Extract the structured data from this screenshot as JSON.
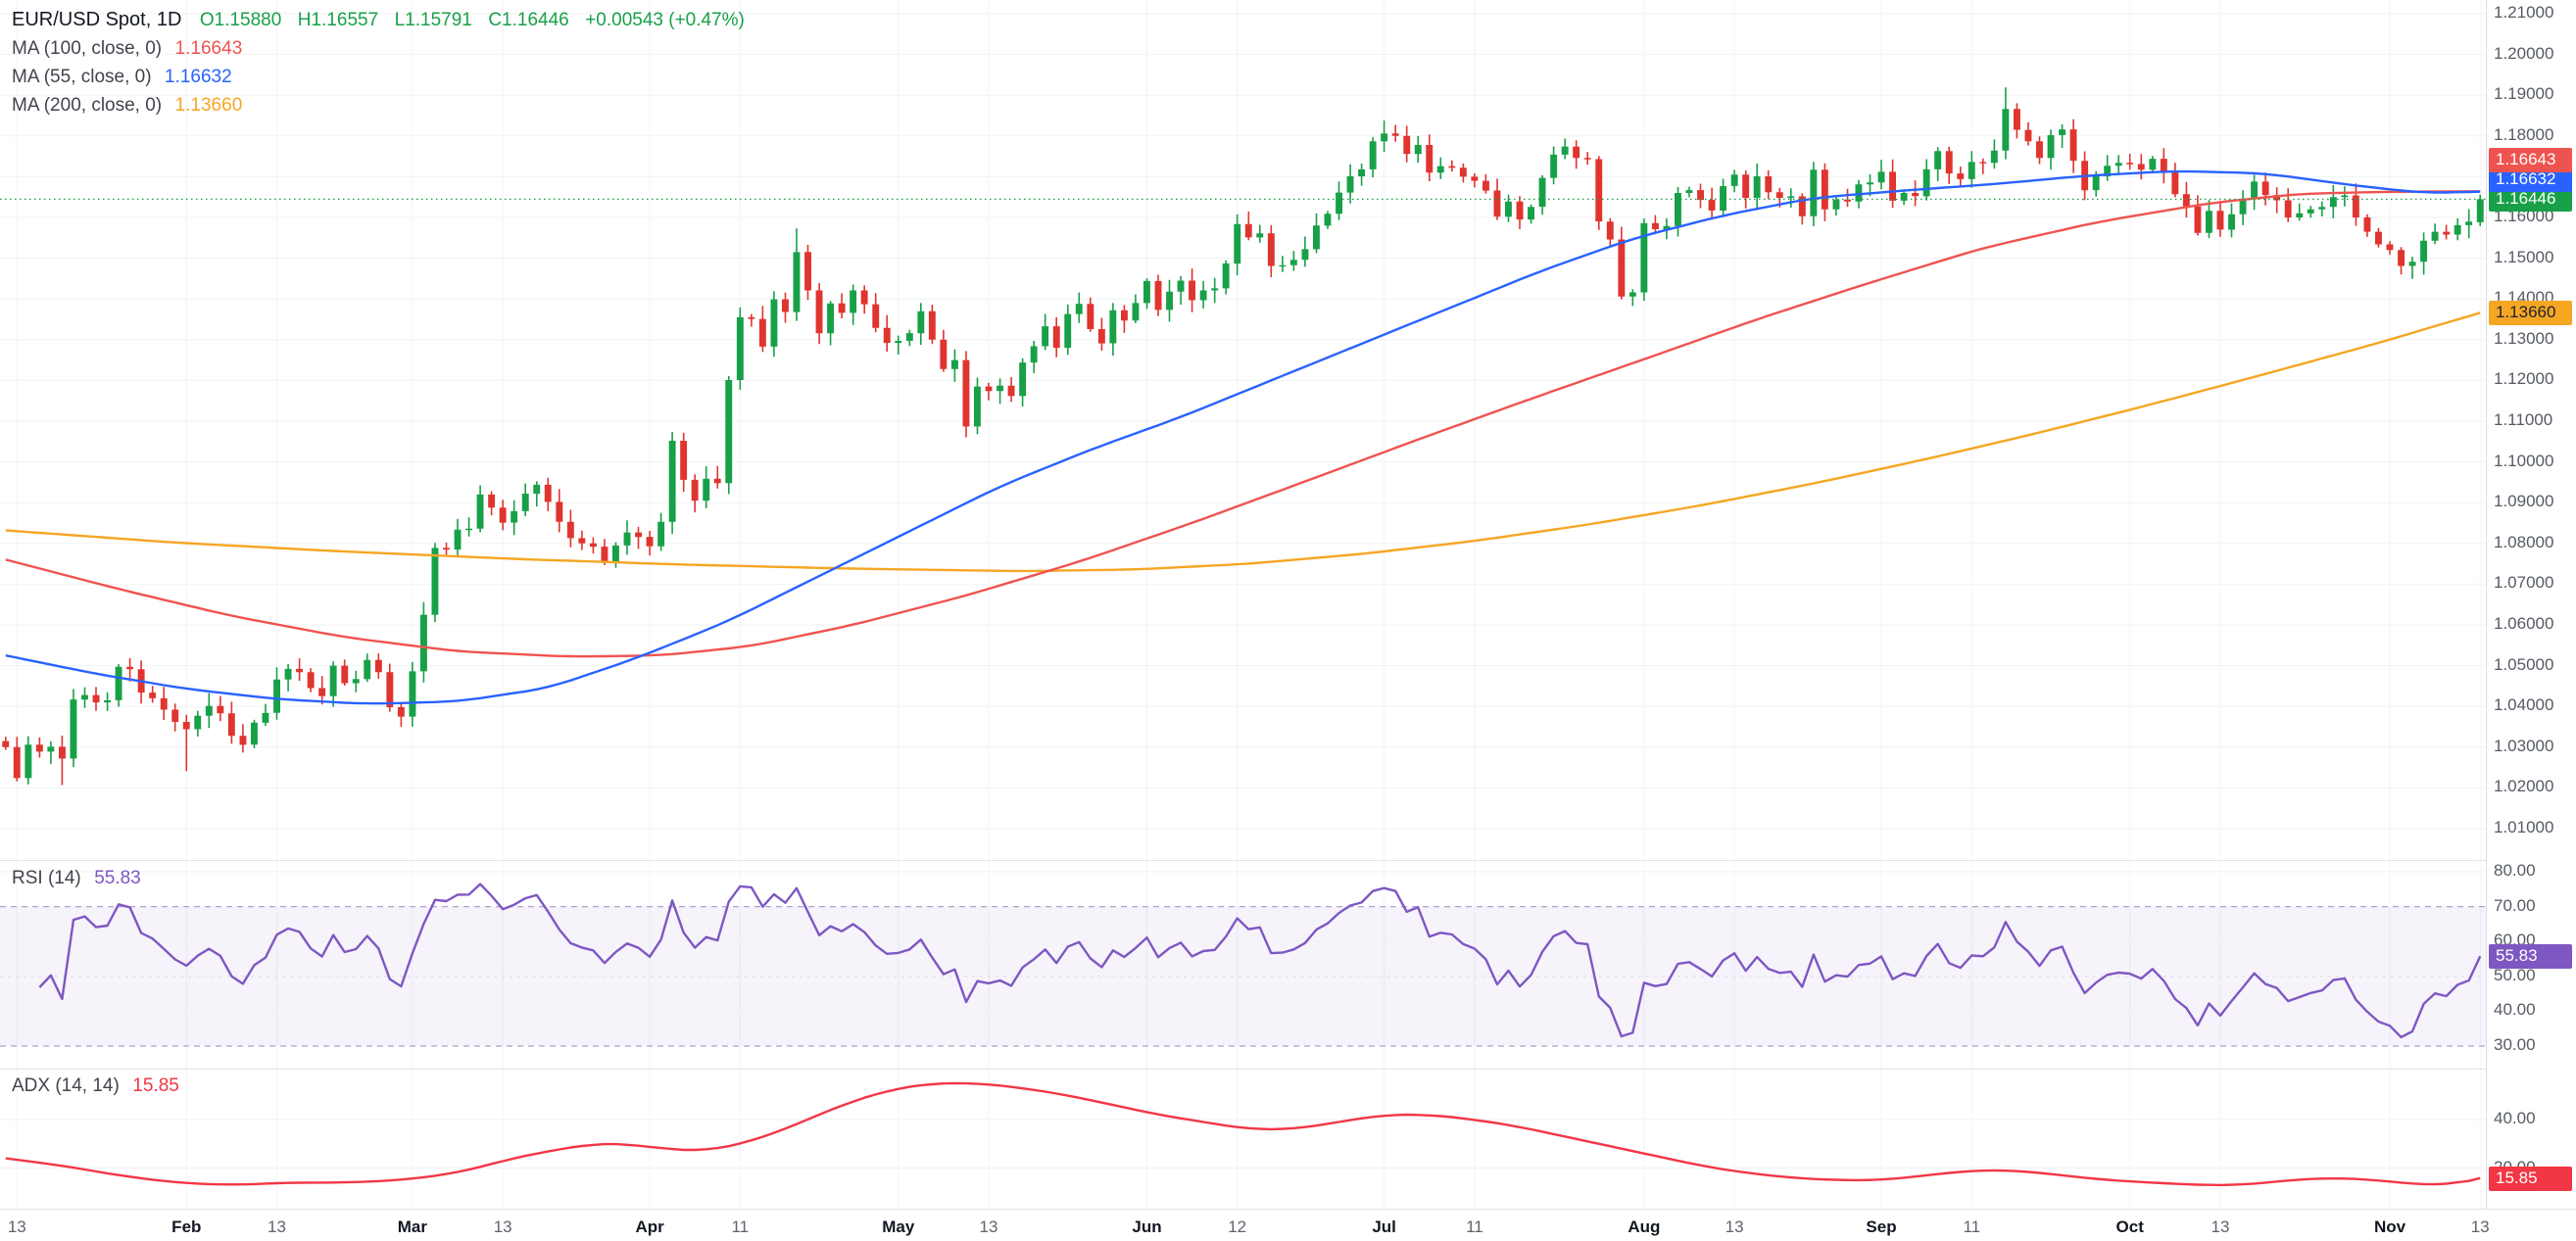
{
  "app": {
    "type": "candlestick-trading-chart",
    "background": "#ffffff"
  },
  "legend": {
    "title": "EUR/USD Spot, 1D",
    "ohlc": {
      "o": "O1.15880",
      "h": "H1.16557",
      "l": "L1.15791",
      "c": "C1.16446",
      "chg": "+0.00543 (+0.47%)",
      "color": "#18a048"
    },
    "ma": [
      {
        "label": "MA (100, close, 0)",
        "value": "1.16643",
        "color": "#ef5350"
      },
      {
        "label": "MA (55, close, 0)",
        "value": "1.16632",
        "color": "#2962ff"
      },
      {
        "label": "MA (200, close, 0)",
        "value": "1.13660",
        "color": "#f5a623"
      }
    ],
    "rsi": {
      "label": "RSI (14)",
      "value": "55.83",
      "color": "#7e57c2"
    },
    "adx": {
      "label": "ADX (14, 14)",
      "value": "15.85",
      "color": "#f23645"
    }
  },
  "badges": [
    {
      "name": "ma100-price-badge",
      "panel": "price",
      "text": "1.16643",
      "value": 1.16643,
      "bg": "#ef5350",
      "fg": "#ffffff"
    },
    {
      "name": "ma55-price-badge",
      "panel": "price",
      "text": "1.16632",
      "value": 1.16632,
      "bg": "#2962ff",
      "fg": "#ffffff"
    },
    {
      "name": "last-price-badge",
      "panel": "price",
      "text": "1.16446",
      "value": 1.16446,
      "bg": "#18a048",
      "fg": "#ffffff"
    },
    {
      "name": "ma200-price-badge",
      "panel": "price",
      "text": "1.13660",
      "value": 1.1366,
      "bg": "#f5a623",
      "fg": "#20242e"
    },
    {
      "name": "rsi-value-badge",
      "panel": "rsi",
      "text": "55.83",
      "value": 55.83,
      "bg": "#7e57c2",
      "fg": "#ffffff"
    },
    {
      "name": "adx-value-badge",
      "panel": "adx",
      "text": "15.85",
      "value": 15.85,
      "bg": "#f23645",
      "fg": "#ffffff"
    }
  ],
  "chart_data": [
    {
      "type": "candlestick",
      "title": "EUR/USD Spot",
      "timeframe": "1D",
      "last_candle": {
        "open": 1.1588,
        "high": 1.16557,
        "low": 1.15791,
        "close": 1.16446,
        "change": 0.00543,
        "change_pct": 0.47
      },
      "y_axis": {
        "min": 1.01,
        "max": 1.21,
        "step": 0.01
      },
      "colors": {
        "up": "#18a048",
        "down": "#e0342f",
        "last_price_line": "#18a048"
      },
      "x_ticks": [
        {
          "label": "13",
          "i": 1,
          "strong": false
        },
        {
          "label": "Feb",
          "i": 16,
          "strong": true
        },
        {
          "label": "13",
          "i": 24,
          "strong": false
        },
        {
          "label": "Mar",
          "i": 36,
          "strong": true
        },
        {
          "label": "13",
          "i": 44,
          "strong": false
        },
        {
          "label": "Apr",
          "i": 57,
          "strong": true
        },
        {
          "label": "11",
          "i": 65,
          "strong": false
        },
        {
          "label": "May",
          "i": 79,
          "strong": true
        },
        {
          "label": "13",
          "i": 87,
          "strong": false
        },
        {
          "label": "Jun",
          "i": 101,
          "strong": true
        },
        {
          "label": "12",
          "i": 109,
          "strong": false
        },
        {
          "label": "Jul",
          "i": 122,
          "strong": true
        },
        {
          "label": "11",
          "i": 130,
          "strong": false
        },
        {
          "label": "Aug",
          "i": 145,
          "strong": true
        },
        {
          "label": "13",
          "i": 153,
          "strong": false
        },
        {
          "label": "Sep",
          "i": 166,
          "strong": true
        },
        {
          "label": "11",
          "i": 174,
          "strong": false
        },
        {
          "label": "Oct",
          "i": 188,
          "strong": true
        },
        {
          "label": "13",
          "i": 196,
          "strong": false
        },
        {
          "label": "Nov",
          "i": 211,
          "strong": true
        },
        {
          "label": "13",
          "i": 219,
          "strong": false
        }
      ],
      "first_open": 1.0315,
      "closes": [
        1.03,
        1.0224,
        1.0306,
        1.0289,
        1.0301,
        1.0272,
        1.0417,
        1.0428,
        1.041,
        1.0415,
        1.0497,
        1.0491,
        1.0434,
        1.042,
        1.0392,
        1.0362,
        1.0344,
        1.0377,
        1.0401,
        1.0383,
        1.0328,
        1.0306,
        1.036,
        1.0384,
        1.0466,
        1.0492,
        1.0484,
        1.0445,
        1.0425,
        1.05,
        1.0457,
        1.0467,
        1.0514,
        1.0484,
        1.0398,
        1.0375,
        1.0486,
        1.0625,
        1.0789,
        1.0785,
        1.0834,
        1.0836,
        1.092,
        1.0888,
        1.0851,
        1.0879,
        1.0922,
        1.0944,
        1.0902,
        1.0853,
        1.0813,
        1.08,
        1.0792,
        1.0756,
        1.0795,
        1.0827,
        1.0816,
        1.0793,
        1.0853,
        1.1052,
        1.0956,
        1.0905,
        1.0959,
        1.0948,
        1.1201,
        1.1355,
        1.1351,
        1.1283,
        1.1399,
        1.1368,
        1.1515,
        1.1421,
        1.1316,
        1.1389,
        1.1366,
        1.1421,
        1.1387,
        1.1329,
        1.1292,
        1.1297,
        1.1316,
        1.137,
        1.13,
        1.1228,
        1.125,
        1.1087,
        1.1185,
        1.1174,
        1.1187,
        1.1162,
        1.1244,
        1.1284,
        1.1333,
        1.128,
        1.1363,
        1.1388,
        1.1326,
        1.1291,
        1.1372,
        1.1347,
        1.139,
        1.1444,
        1.1373,
        1.1418,
        1.1445,
        1.1397,
        1.1421,
        1.1426,
        1.1487,
        1.1584,
        1.1551,
        1.1561,
        1.1481,
        1.1483,
        1.1496,
        1.1522,
        1.158,
        1.1609,
        1.1661,
        1.1701,
        1.1718,
        1.1787,
        1.1806,
        1.18,
        1.1756,
        1.1778,
        1.171,
        1.1726,
        1.1722,
        1.17,
        1.169,
        1.1666,
        1.1602,
        1.1639,
        1.1595,
        1.1626,
        1.1697,
        1.1754,
        1.1774,
        1.1746,
        1.1743,
        1.159,
        1.1546,
        1.1406,
        1.1416,
        1.1586,
        1.1571,
        1.1579,
        1.166,
        1.1667,
        1.1643,
        1.1617,
        1.1677,
        1.1705,
        1.1648,
        1.1701,
        1.1662,
        1.1648,
        1.1652,
        1.1603,
        1.1717,
        1.162,
        1.1644,
        1.1639,
        1.1681,
        1.1686,
        1.1712,
        1.1641,
        1.166,
        1.1652,
        1.1718,
        1.1763,
        1.1708,
        1.1694,
        1.1736,
        1.1734,
        1.1764,
        1.1866,
        1.1815,
        1.1787,
        1.1746,
        1.1802,
        1.1816,
        1.1739,
        1.1667,
        1.1701,
        1.1727,
        1.1734,
        1.1731,
        1.1717,
        1.1744,
        1.1712,
        1.1657,
        1.1627,
        1.1562,
        1.1616,
        1.157,
        1.1608,
        1.1646,
        1.1688,
        1.1655,
        1.1642,
        1.16,
        1.161,
        1.162,
        1.1626,
        1.165,
        1.1654,
        1.16,
        1.1565,
        1.1534,
        1.152,
        1.1481,
        1.1491,
        1.1543,
        1.1565,
        1.1558,
        1.1581,
        1.159,
        1.16446
      ],
      "wick_overrides": {
        "5": {
          "l": 1.0207
        },
        "16": {
          "l": 1.0241
        },
        "70": {
          "h": 1.1573
        },
        "177": {
          "h": 1.1919
        },
        "219": {
          "o": 1.1588,
          "h": 1.16557,
          "l": 1.15791,
          "c": 1.16446
        }
      },
      "moving_averages": [
        {
          "name": "MA 200",
          "color": "#f5a623",
          "last": 1.1366,
          "anchors": [
            [
              0,
              1.0832
            ],
            [
              15,
              1.0802
            ],
            [
              30,
              1.078
            ],
            [
              45,
              1.0762
            ],
            [
              60,
              1.0748
            ],
            [
              75,
              1.0738
            ],
            [
              90,
              1.0732
            ],
            [
              100,
              1.0736
            ],
            [
              110,
              1.075
            ],
            [
              120,
              1.0774
            ],
            [
              130,
              1.0806
            ],
            [
              140,
              1.0846
            ],
            [
              150,
              1.0893
            ],
            [
              160,
              1.0947
            ],
            [
              170,
              1.1007
            ],
            [
              180,
              1.1072
            ],
            [
              190,
              1.1142
            ],
            [
              200,
              1.1216
            ],
            [
              210,
              1.1292
            ],
            [
              219,
              1.1366
            ]
          ]
        },
        {
          "name": "MA 100",
          "color": "#ef5350",
          "last": 1.16643,
          "anchors": [
            [
              0,
              1.076
            ],
            [
              10,
              1.0688
            ],
            [
              20,
              1.0622
            ],
            [
              30,
              1.057
            ],
            [
              40,
              1.0535
            ],
            [
              50,
              1.0522
            ],
            [
              58,
              1.0525
            ],
            [
              66,
              1.0548
            ],
            [
              75,
              1.06
            ],
            [
              85,
              1.0672
            ],
            [
              95,
              1.0755
            ],
            [
              105,
              1.085
            ],
            [
              115,
              1.0952
            ],
            [
              125,
              1.1055
            ],
            [
              135,
              1.1155
            ],
            [
              145,
              1.1252
            ],
            [
              155,
              1.135
            ],
            [
              165,
              1.144
            ],
            [
              175,
              1.1525
            ],
            [
              185,
              1.1588
            ],
            [
              195,
              1.1635
            ],
            [
              203,
              1.1658
            ],
            [
              211,
              1.1663
            ],
            [
              219,
              1.16643
            ]
          ]
        },
        {
          "name": "MA 55",
          "color": "#2962ff",
          "last": 1.16632,
          "anchors": [
            [
              0,
              1.0525
            ],
            [
              8,
              1.048
            ],
            [
              16,
              1.0443
            ],
            [
              24,
              1.0418
            ],
            [
              32,
              1.0406
            ],
            [
              40,
              1.0412
            ],
            [
              48,
              1.0445
            ],
            [
              56,
              1.052
            ],
            [
              64,
              1.061
            ],
            [
              72,
              1.072
            ],
            [
              80,
              1.083
            ],
            [
              88,
              1.094
            ],
            [
              96,
              1.103
            ],
            [
              104,
              1.111
            ],
            [
              112,
              1.12
            ],
            [
              120,
              1.129
            ],
            [
              128,
              1.138
            ],
            [
              136,
              1.147
            ],
            [
              144,
              1.1548
            ],
            [
              152,
              1.1605
            ],
            [
              160,
              1.1648
            ],
            [
              168,
              1.1666
            ],
            [
              176,
              1.1682
            ],
            [
              184,
              1.1702
            ],
            [
              192,
              1.1714
            ],
            [
              200,
              1.1708
            ],
            [
              208,
              1.1678
            ],
            [
              214,
              1.166
            ],
            [
              219,
              1.16632
            ]
          ]
        }
      ]
    },
    {
      "type": "line",
      "title": "RSI (14)",
      "period": 14,
      "last": 55.83,
      "color": "#7e57c2",
      "band": [
        30,
        70
      ],
      "y_ticks": [
        80,
        70,
        60,
        50,
        40,
        30
      ]
    },
    {
      "type": "line",
      "title": "ADX (14, 14)",
      "last": 15.85,
      "color": "#f23645",
      "y_ticks": [
        40,
        20
      ],
      "values_anchors": [
        [
          0,
          24
        ],
        [
          5,
          21
        ],
        [
          10,
          17
        ],
        [
          15,
          14
        ],
        [
          20,
          13
        ],
        [
          25,
          14
        ],
        [
          30,
          14
        ],
        [
          35,
          15
        ],
        [
          40,
          18
        ],
        [
          44,
          23
        ],
        [
          48,
          27
        ],
        [
          52,
          30
        ],
        [
          55,
          30
        ],
        [
          58,
          28
        ],
        [
          62,
          27
        ],
        [
          66,
          31
        ],
        [
          70,
          38
        ],
        [
          74,
          46
        ],
        [
          78,
          52
        ],
        [
          82,
          55
        ],
        [
          86,
          55
        ],
        [
          90,
          53
        ],
        [
          94,
          50
        ],
        [
          98,
          46
        ],
        [
          102,
          42
        ],
        [
          106,
          39
        ],
        [
          110,
          36
        ],
        [
          114,
          36
        ],
        [
          118,
          39
        ],
        [
          122,
          42
        ],
        [
          126,
          42
        ],
        [
          130,
          40
        ],
        [
          134,
          37
        ],
        [
          138,
          33
        ],
        [
          142,
          29
        ],
        [
          146,
          25
        ],
        [
          150,
          21
        ],
        [
          154,
          18
        ],
        [
          158,
          16
        ],
        [
          162,
          15
        ],
        [
          166,
          15
        ],
        [
          170,
          17
        ],
        [
          174,
          19
        ],
        [
          178,
          19
        ],
        [
          182,
          17
        ],
        [
          186,
          15
        ],
        [
          190,
          14
        ],
        [
          194,
          13
        ],
        [
          198,
          13
        ],
        [
          202,
          15
        ],
        [
          206,
          16
        ],
        [
          210,
          15
        ],
        [
          214,
          13
        ],
        [
          217,
          13.5
        ],
        [
          219,
          15.85
        ]
      ]
    }
  ]
}
